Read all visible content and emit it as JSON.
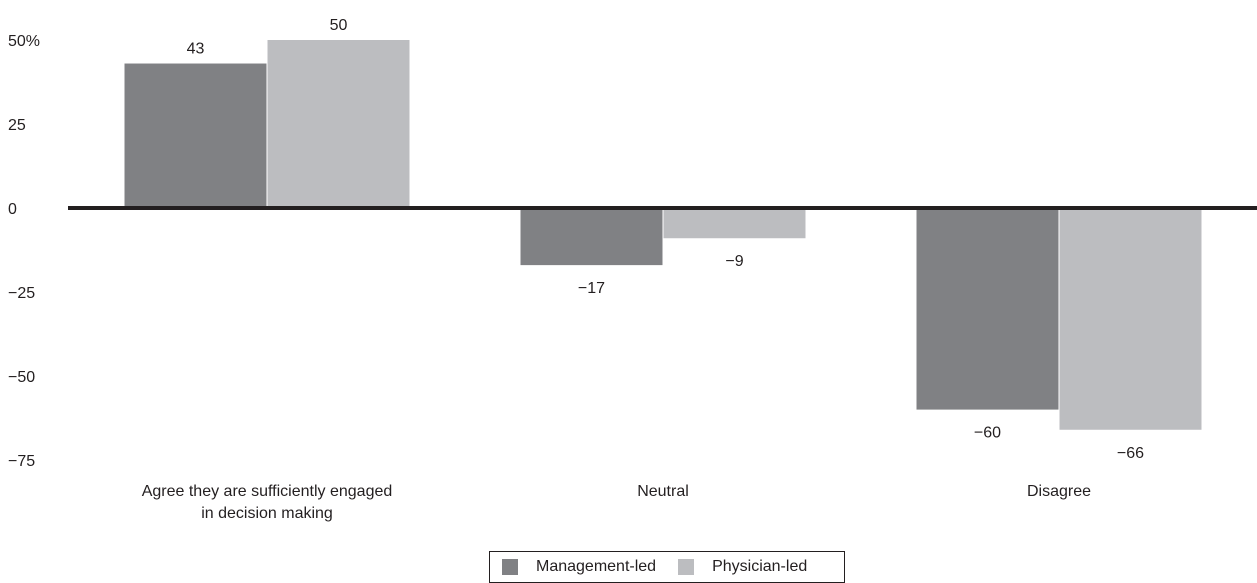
{
  "chart_data": {
    "type": "bar",
    "categories": [
      [
        "Agree they are sufficiently engaged",
        "in decision making"
      ],
      [
        "Neutral"
      ],
      [
        "Disagree"
      ]
    ],
    "series": [
      {
        "name": "Management-led",
        "values": [
          43,
          -17,
          -60
        ],
        "labels": [
          "43",
          "−17",
          "−60"
        ],
        "color": "#808184"
      },
      {
        "name": "Physician-led",
        "values": [
          50,
          -9,
          -66
        ],
        "labels": [
          "50",
          "−9",
          "−66"
        ],
        "color": "#bcbdc0"
      }
    ],
    "yticks": [
      {
        "value": 50,
        "label": "50%"
      },
      {
        "value": 25,
        "label": "25"
      },
      {
        "value": 0,
        "label": "0"
      },
      {
        "value": -25,
        "label": "−25"
      },
      {
        "value": -50,
        "label": "−50"
      },
      {
        "value": -75,
        "label": "−75"
      }
    ],
    "ylim": [
      -75,
      50
    ],
    "grid": false,
    "legend_position": "bottom-center",
    "title": "",
    "xlabel": "",
    "ylabel": ""
  }
}
